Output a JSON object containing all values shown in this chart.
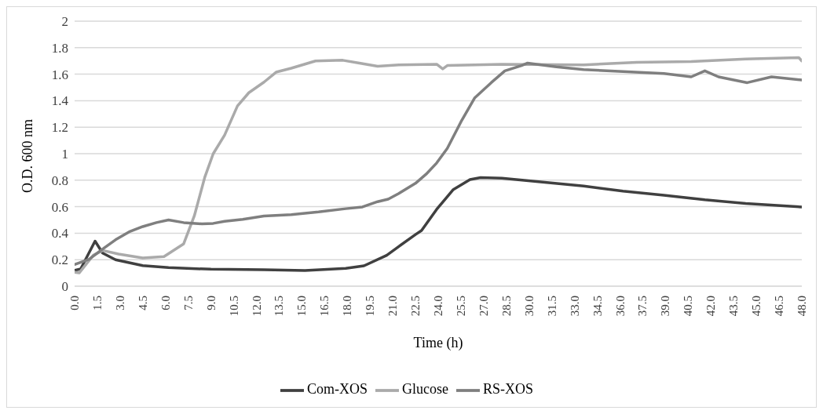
{
  "chart_data": {
    "type": "line",
    "xlabel": "Time (h)",
    "ylabel": "O.D. 600 nm",
    "xlim": [
      0,
      48
    ],
    "xticks": [
      {
        "value": 0,
        "label": "0.0"
      },
      {
        "value": 1.5,
        "label": "1.5"
      },
      {
        "value": 3,
        "label": "3.0"
      },
      {
        "value": 4.5,
        "label": "4.5"
      },
      {
        "value": 6,
        "label": "6.0"
      },
      {
        "value": 7.5,
        "label": "7.5"
      },
      {
        "value": 9,
        "label": "9.0"
      },
      {
        "value": 10.5,
        "label": "10.5"
      },
      {
        "value": 12,
        "label": "12.0"
      },
      {
        "value": 13.5,
        "label": "13.5"
      },
      {
        "value": 15,
        "label": "15.0"
      },
      {
        "value": 16.5,
        "label": "16.5"
      },
      {
        "value": 18,
        "label": "18.0"
      },
      {
        "value": 19.5,
        "label": "19.5"
      },
      {
        "value": 21,
        "label": "21.0"
      },
      {
        "value": 22.5,
        "label": "22.5"
      },
      {
        "value": 24,
        "label": "24.0"
      },
      {
        "value": 25.5,
        "label": "25.5"
      },
      {
        "value": 27,
        "label": "27.0"
      },
      {
        "value": 28.5,
        "label": "28.5"
      },
      {
        "value": 30,
        "label": "30.0"
      },
      {
        "value": 31.5,
        "label": "31.5"
      },
      {
        "value": 33,
        "label": "33.0"
      },
      {
        "value": 34.5,
        "label": "34.5"
      },
      {
        "value": 36,
        "label": "36.0"
      },
      {
        "value": 37.5,
        "label": "37.5"
      },
      {
        "value": 39,
        "label": "39.0"
      },
      {
        "value": 40.5,
        "label": "40.5"
      },
      {
        "value": 42,
        "label": "42.0"
      },
      {
        "value": 43.5,
        "label": "43.5"
      },
      {
        "value": 45,
        "label": "45.0"
      },
      {
        "value": 46.5,
        "label": "46.5"
      },
      {
        "value": 48,
        "label": "48.0"
      }
    ],
    "ylim": [
      0,
      2
    ],
    "yticks": [
      0,
      0.2,
      0.4,
      0.6,
      0.8,
      1,
      1.2,
      1.4,
      1.6,
      1.8,
      2
    ],
    "grid": "y",
    "legend": "bottom",
    "marker": "none",
    "line_style": "solid",
    "series": [
      {
        "name": "Com-XOS",
        "color": "#404040",
        "x": [
          0,
          0.4,
          1.35,
          1.85,
          2.7,
          4.5,
          6.2,
          9,
          12.5,
          15.2,
          17.9,
          19.1,
          20.6,
          21.4,
          22.5,
          22.9,
          23.9,
          25,
          26.1,
          26.8,
          28.2,
          30.9,
          33.6,
          36.2,
          38.9,
          41.6,
          44.3,
          48
        ],
        "values": [
          0.12,
          0.13,
          0.34,
          0.25,
          0.2,
          0.155,
          0.14,
          0.128,
          0.124,
          0.118,
          0.134,
          0.154,
          0.233,
          0.3,
          0.39,
          0.42,
          0.58,
          0.73,
          0.805,
          0.82,
          0.815,
          0.785,
          0.756,
          0.717,
          0.687,
          0.652,
          0.624,
          0.598
        ]
      },
      {
        "name": "Glucose",
        "color": "#aaaaaa",
        "x": [
          0,
          0.3,
          1.23,
          1.85,
          2.9,
          4.5,
          5.9,
          7.2,
          7.9,
          8.6,
          9.15,
          9.9,
          10.75,
          11.5,
          12.5,
          13.3,
          14.3,
          15.9,
          17.7,
          18.8,
          20,
          21.4,
          23.9,
          24.3,
          24.6,
          28.2,
          33.6,
          37.1,
          40.7,
          44.3,
          47.8,
          48
        ],
        "values": [
          0.105,
          0.1,
          0.233,
          0.27,
          0.243,
          0.213,
          0.223,
          0.32,
          0.53,
          0.825,
          1,
          1.14,
          1.36,
          1.46,
          1.54,
          1.615,
          1.645,
          1.7,
          1.705,
          1.684,
          1.66,
          1.67,
          1.675,
          1.64,
          1.665,
          1.675,
          1.67,
          1.69,
          1.695,
          1.715,
          1.725,
          1.7
        ]
      },
      {
        "name": "RS-XOS",
        "color": "#7f7f7f",
        "x": [
          0,
          0.96,
          1.85,
          2.7,
          3.6,
          4.5,
          5.4,
          6.2,
          7.2,
          8.4,
          9.15,
          9.9,
          11.1,
          12.5,
          14.3,
          16.1,
          17.9,
          19,
          20,
          20.7,
          21.4,
          22.5,
          23.2,
          23.9,
          24.6,
          25.5,
          26.4,
          27.5,
          28.4,
          29.5,
          29.9,
          31.8,
          33.6,
          36.2,
          38.9,
          40.7,
          41.6,
          42.5,
          44.4,
          46,
          48
        ],
        "values": [
          0.164,
          0.203,
          0.28,
          0.35,
          0.41,
          0.45,
          0.48,
          0.5,
          0.48,
          0.47,
          0.474,
          0.49,
          0.505,
          0.53,
          0.54,
          0.56,
          0.585,
          0.598,
          0.638,
          0.657,
          0.7,
          0.776,
          0.845,
          0.93,
          1.04,
          1.24,
          1.42,
          1.536,
          1.625,
          1.665,
          1.684,
          1.655,
          1.635,
          1.62,
          1.605,
          1.58,
          1.625,
          1.58,
          1.536,
          1.58,
          1.556
        ]
      }
    ]
  }
}
